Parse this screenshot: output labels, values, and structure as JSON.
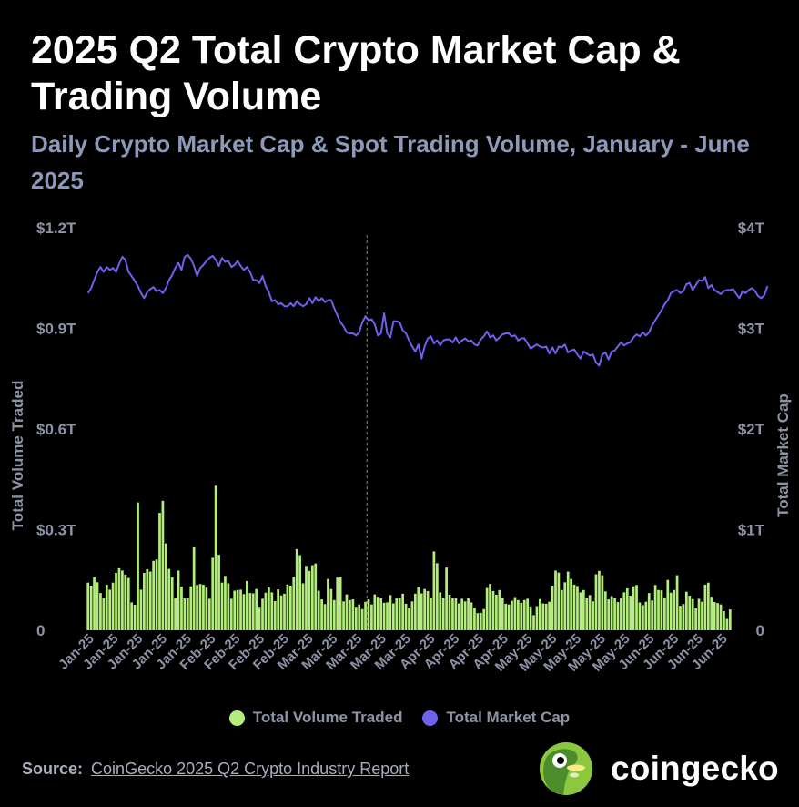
{
  "title": "2025 Q2 Total Crypto Market Cap & Trading Volume",
  "subtitle": "Daily Crypto Market Cap & Spot Trading Volume, January - June 2025",
  "legend": {
    "volume": "Total Volume Traded",
    "market_cap": "Total Market Cap"
  },
  "source": {
    "label": "Source:",
    "text": "CoinGecko 2025 Q2 Crypto Industry Report"
  },
  "logo": {
    "text": "coingecko",
    "icon": "coingecko-gecko-logo-icon"
  },
  "colors": {
    "volume": "#b4ee7a",
    "market_cap": "#7060f0",
    "background": "#000000",
    "axis_text": "#8d93a6",
    "divider": "#8a8a8a"
  },
  "chart_data": {
    "type": "bar+line",
    "x_tick_labels": [
      "Jan-25",
      "Jan-25",
      "Jan-25",
      "Jan-25",
      "Jan-25",
      "Feb-25",
      "Feb-25",
      "Feb-25",
      "Feb-25",
      "Mar-25",
      "Mar-25",
      "Mar-25",
      "Mar-25",
      "Mar-25",
      "Apr-25",
      "Apr-25",
      "Apr-25",
      "Apr-25",
      "May-25",
      "May-25",
      "May-25",
      "May-25",
      "May-25",
      "Jun-25",
      "Jun-25",
      "Jun-25",
      "Jun-25"
    ],
    "ylabel_left": "Total Volume Traded",
    "ylabel_right": "Total Market Cap",
    "yticks_left": [
      "0",
      "$0.3T",
      "$0.6T",
      "$0.9T",
      "$1.2T"
    ],
    "yticks_right": [
      "0",
      "$1T",
      "$2T",
      "$3T",
      "$4T"
    ],
    "ylim_left": [
      0,
      1.2
    ],
    "ylim_right": [
      0,
      4
    ],
    "divider_after_day": 90,
    "legend_position": "bottom",
    "series": [
      {
        "name": "Total Volume Traded",
        "axis": "left",
        "type": "bar",
        "unit": "T",
        "values": [
          0.142,
          0.133,
          0.158,
          0.143,
          0.111,
          0.096,
          0.136,
          0.121,
          0.142,
          0.171,
          0.185,
          0.178,
          0.166,
          0.156,
          0.083,
          0.076,
          0.381,
          0.121,
          0.171,
          0.182,
          0.175,
          0.207,
          0.211,
          0.35,
          0.386,
          0.259,
          0.183,
          0.158,
          0.097,
          0.178,
          0.13,
          0.095,
          0.095,
          0.131,
          0.25,
          0.135,
          0.138,
          0.136,
          0.127,
          0.094,
          0.216,
          0.431,
          0.225,
          0.142,
          0.162,
          0.14,
          0.094,
          0.118,
          0.12,
          0.121,
          0.108,
          0.147,
          0.111,
          0.11,
          0.123,
          0.07,
          0.094,
          0.112,
          0.128,
          0.113,
          0.087,
          0.122,
          0.104,
          0.109,
          0.137,
          0.133,
          0.159,
          0.242,
          0.224,
          0.14,
          0.192,
          0.177,
          0.194,
          0.199,
          0.118,
          0.092,
          0.078,
          0.153,
          0.123,
          0.09,
          0.157,
          0.16,
          0.086,
          0.107,
          0.09,
          0.092,
          0.07,
          0.077,
          0.063,
          0.085,
          0.092,
          0.077,
          0.107,
          0.1,
          0.095,
          0.082,
          0.083,
          0.105,
          0.08,
          0.095,
          0.097,
          0.109,
          0.079,
          0.068,
          0.086,
          0.109,
          0.13,
          0.11,
          0.123,
          0.117,
          0.097,
          0.235,
          0.2,
          0.113,
          0.095,
          0.187,
          0.106,
          0.095,
          0.096,
          0.08,
          0.094,
          0.086,
          0.095,
          0.083,
          0.068,
          0.051,
          0.052,
          0.063,
          0.126,
          0.138,
          0.117,
          0.106,
          0.12,
          0.098,
          0.079,
          0.077,
          0.088,
          0.099,
          0.09,
          0.082,
          0.09,
          0.094,
          0.071,
          0.045,
          0.072,
          0.093,
          0.08,
          0.079,
          0.085,
          0.133,
          0.178,
          0.172,
          0.12,
          0.143,
          0.175,
          0.153,
          0.136,
          0.132,
          0.113,
          0.12,
          0.095,
          0.105,
          0.086,
          0.167,
          0.177,
          0.164,
          0.116,
          0.092,
          0.102,
          0.095,
          0.084,
          0.097,
          0.113,
          0.125,
          0.103,
          0.131,
          0.135,
          0.083,
          0.075,
          0.085,
          0.111,
          0.089,
          0.135,
          0.12,
          0.119,
          0.098,
          0.15,
          0.112,
          0.12,
          0.164,
          0.073,
          0.078,
          0.115,
          0.103,
          0.093,
          0.066,
          0.094,
          0.085,
          0.136,
          0.142,
          0.1,
          0.084,
          0.081,
          0.077,
          0.057,
          0.034,
          0.062
        ]
      },
      {
        "name": "Total Market Cap",
        "axis": "right",
        "type": "line",
        "unit": "T",
        "values": [
          3.35,
          3.4,
          3.48,
          3.56,
          3.61,
          3.56,
          3.61,
          3.58,
          3.6,
          3.56,
          3.64,
          3.71,
          3.68,
          3.56,
          3.52,
          3.47,
          3.42,
          3.35,
          3.3,
          3.36,
          3.39,
          3.41,
          3.37,
          3.38,
          3.35,
          3.4,
          3.48,
          3.53,
          3.6,
          3.65,
          3.58,
          3.71,
          3.73,
          3.69,
          3.62,
          3.52,
          3.6,
          3.63,
          3.67,
          3.7,
          3.72,
          3.68,
          3.62,
          3.7,
          3.66,
          3.67,
          3.61,
          3.63,
          3.67,
          3.62,
          3.58,
          3.61,
          3.56,
          3.48,
          3.48,
          3.45,
          3.52,
          3.42,
          3.36,
          3.27,
          3.28,
          3.24,
          3.25,
          3.22,
          3.22,
          3.25,
          3.22,
          3.27,
          3.24,
          3.22,
          3.24,
          3.3,
          3.25,
          3.31,
          3.27,
          3.3,
          3.26,
          3.28,
          3.28,
          3.2,
          3.13,
          3.06,
          3.02,
          2.96,
          2.95,
          2.95,
          2.93,
          2.96,
          3.06,
          3.12,
          3.08,
          3.09,
          3.04,
          2.93,
          2.95,
          3.15,
          2.95,
          2.91,
          3.07,
          3.07,
          3.06,
          2.98,
          2.95,
          2.88,
          2.82,
          2.77,
          2.84,
          2.7,
          2.82,
          2.9,
          2.92,
          2.85,
          2.88,
          2.83,
          2.88,
          2.89,
          2.89,
          2.86,
          2.91,
          2.85,
          2.88,
          2.9,
          2.87,
          2.88,
          2.84,
          2.83,
          2.89,
          2.92,
          2.97,
          2.91,
          2.93,
          2.88,
          2.91,
          2.94,
          2.95,
          2.95,
          2.92,
          2.93,
          2.88,
          2.9,
          2.9,
          2.85,
          2.8,
          2.82,
          2.84,
          2.82,
          2.81,
          2.82,
          2.75,
          2.81,
          2.75,
          2.82,
          2.81,
          2.84,
          2.76,
          2.78,
          2.79,
          2.74,
          2.7,
          2.77,
          2.75,
          2.73,
          2.74,
          2.66,
          2.63,
          2.74,
          2.76,
          2.69,
          2.77,
          2.78,
          2.82,
          2.86,
          2.83,
          2.85,
          2.86,
          2.91,
          2.94,
          2.92,
          2.96,
          2.93,
          2.96,
          3.03,
          3.08,
          3.13,
          3.18,
          3.24,
          3.28,
          3.35,
          3.37,
          3.38,
          3.35,
          3.37,
          3.44,
          3.45,
          3.38,
          3.43,
          3.48,
          3.47,
          3.51,
          3.4,
          3.43,
          3.38,
          3.36,
          3.34,
          3.37,
          3.38,
          3.38,
          3.39,
          3.34,
          3.3,
          3.37,
          3.35,
          3.38,
          3.4,
          3.37,
          3.32,
          3.3,
          3.33,
          3.42
        ]
      }
    ]
  }
}
